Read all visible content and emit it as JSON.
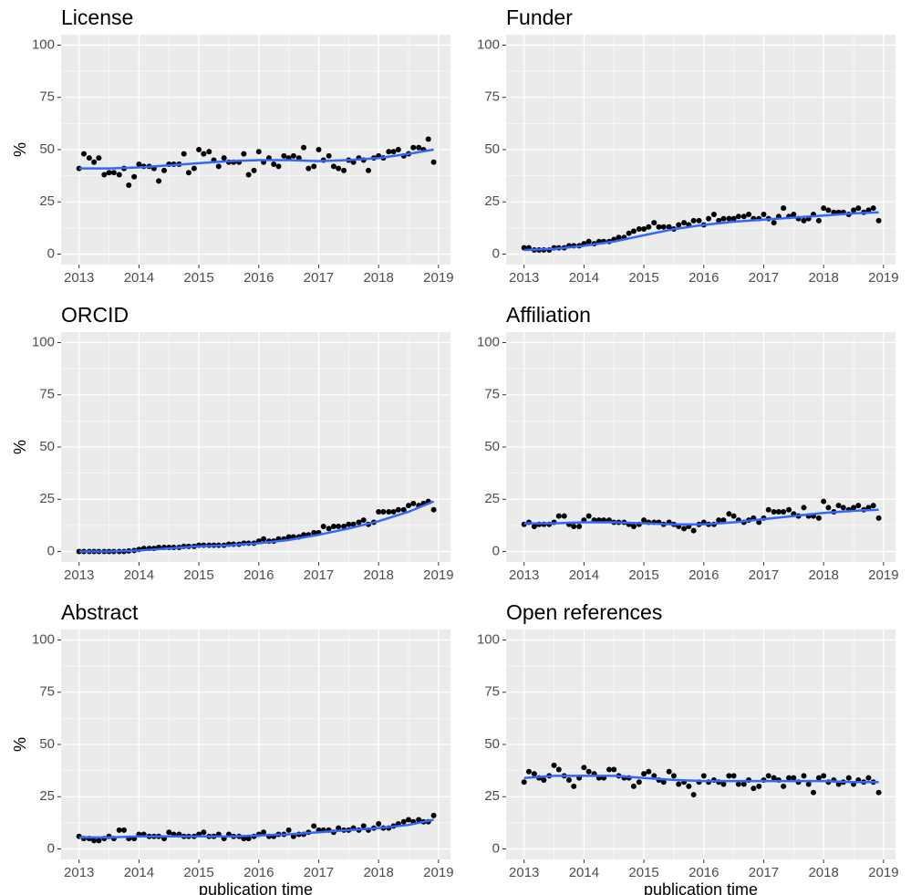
{
  "chart_data": [
    {
      "type": "scatter",
      "title": "License",
      "ylabel": "%",
      "x": [
        2013,
        2013.08,
        2013.17,
        2013.25,
        2013.33,
        2013.42,
        2013.5,
        2013.58,
        2013.67,
        2013.75,
        2013.83,
        2013.92,
        2014,
        2014.08,
        2014.17,
        2014.25,
        2014.33,
        2014.42,
        2014.5,
        2014.58,
        2014.67,
        2014.75,
        2014.83,
        2014.92,
        2015,
        2015.08,
        2015.17,
        2015.25,
        2015.33,
        2015.42,
        2015.5,
        2015.58,
        2015.67,
        2015.75,
        2015.83,
        2015.92,
        2016,
        2016.08,
        2016.17,
        2016.25,
        2016.33,
        2016.42,
        2016.5,
        2016.58,
        2016.67,
        2016.75,
        2016.83,
        2016.92,
        2017,
        2017.08,
        2017.17,
        2017.25,
        2017.33,
        2017.42,
        2017.5,
        2017.58,
        2017.67,
        2017.75,
        2017.83,
        2017.92,
        2018,
        2018.08,
        2018.17,
        2018.25,
        2018.33,
        2018.42,
        2018.5,
        2018.58,
        2018.67,
        2018.75,
        2018.83,
        2018.92
      ],
      "values": [
        41,
        48,
        46,
        44,
        46,
        38,
        39,
        39,
        38,
        41,
        33,
        37,
        43,
        42,
        42,
        41,
        35,
        40,
        43,
        43,
        43,
        48,
        39,
        41,
        50,
        48,
        49,
        45,
        42,
        46,
        44,
        44,
        44,
        48,
        38,
        40,
        49,
        44,
        46,
        43,
        42,
        47,
        46,
        47,
        46,
        51,
        41,
        42,
        50,
        45,
        47,
        42,
        41,
        40,
        45,
        44,
        46,
        45,
        40,
        46,
        47,
        46,
        49,
        49,
        50,
        47,
        48,
        51,
        51,
        50,
        55,
        44
      ],
      "trend_x": [
        2013,
        2013.5,
        2014,
        2014.5,
        2015,
        2015.5,
        2016,
        2016.5,
        2017,
        2017.5,
        2018,
        2018.5,
        2018.92
      ],
      "trend": [
        41,
        41,
        41.5,
        42.5,
        43.5,
        44.5,
        45,
        45,
        44.5,
        45,
        46,
        48,
        50
      ],
      "point_color": "#000000",
      "trend_color": "#3366ff",
      "xlim": [
        2012.7,
        2019.2
      ],
      "xticks": [
        2013,
        2014,
        2015,
        2016,
        2017,
        2018,
        2019
      ],
      "ylim": [
        -5,
        105
      ],
      "yticks": [
        0,
        25,
        50,
        75,
        100
      ],
      "grid": true
    },
    {
      "type": "scatter",
      "title": "Funder",
      "x": [
        2013,
        2013.08,
        2013.17,
        2013.25,
        2013.33,
        2013.42,
        2013.5,
        2013.58,
        2013.67,
        2013.75,
        2013.83,
        2013.92,
        2014,
        2014.08,
        2014.17,
        2014.25,
        2014.33,
        2014.42,
        2014.5,
        2014.58,
        2014.67,
        2014.75,
        2014.83,
        2014.92,
        2015,
        2015.08,
        2015.17,
        2015.25,
        2015.33,
        2015.42,
        2015.5,
        2015.58,
        2015.67,
        2015.75,
        2015.83,
        2015.92,
        2016,
        2016.08,
        2016.17,
        2016.25,
        2016.33,
        2016.42,
        2016.5,
        2016.58,
        2016.67,
        2016.75,
        2016.83,
        2016.92,
        2017,
        2017.08,
        2017.17,
        2017.25,
        2017.33,
        2017.42,
        2017.5,
        2017.58,
        2017.67,
        2017.75,
        2017.83,
        2017.92,
        2018,
        2018.08,
        2018.17,
        2018.25,
        2018.33,
        2018.42,
        2018.5,
        2018.58,
        2018.67,
        2018.75,
        2018.83,
        2018.92
      ],
      "values": [
        3,
        3,
        2,
        2,
        2,
        2,
        3,
        3,
        3,
        4,
        4,
        4,
        5,
        6,
        5,
        6,
        6,
        6,
        7,
        8,
        8,
        10,
        11,
        12,
        12,
        13,
        15,
        13,
        13,
        13,
        12,
        14,
        15,
        14,
        16,
        16,
        14,
        17,
        19,
        16,
        17,
        17,
        17,
        18,
        18,
        19,
        17,
        17,
        19,
        17,
        15,
        18,
        22,
        18,
        19,
        17,
        16,
        17,
        19,
        16,
        22,
        21,
        20,
        20,
        20,
        19,
        21,
        22,
        20,
        21,
        22,
        16
      ],
      "trend_x": [
        2013,
        2013.5,
        2014,
        2014.5,
        2015,
        2015.5,
        2016,
        2016.5,
        2017,
        2017.5,
        2018,
        2018.5,
        2018.92
      ],
      "trend": [
        2,
        2.5,
        4,
        6,
        9,
        12,
        14,
        15.5,
        16.5,
        17.5,
        18.5,
        19.5,
        20
      ],
      "point_color": "#000000",
      "trend_color": "#3366ff",
      "xlim": [
        2012.7,
        2019.2
      ],
      "xticks": [
        2013,
        2014,
        2015,
        2016,
        2017,
        2018,
        2019
      ],
      "ylim": [
        -5,
        105
      ],
      "yticks": [
        0,
        25,
        50,
        75,
        100
      ],
      "grid": true
    },
    {
      "type": "scatter",
      "title": "ORCID",
      "ylabel": "%",
      "x": [
        2013,
        2013.08,
        2013.17,
        2013.25,
        2013.33,
        2013.42,
        2013.5,
        2013.58,
        2013.67,
        2013.75,
        2013.83,
        2013.92,
        2014,
        2014.08,
        2014.17,
        2014.25,
        2014.33,
        2014.42,
        2014.5,
        2014.58,
        2014.67,
        2014.75,
        2014.83,
        2014.92,
        2015,
        2015.08,
        2015.17,
        2015.25,
        2015.33,
        2015.42,
        2015.5,
        2015.58,
        2015.67,
        2015.75,
        2015.83,
        2015.92,
        2016,
        2016.08,
        2016.17,
        2016.25,
        2016.33,
        2016.42,
        2016.5,
        2016.58,
        2016.67,
        2016.75,
        2016.83,
        2016.92,
        2017,
        2017.08,
        2017.17,
        2017.25,
        2017.33,
        2017.42,
        2017.5,
        2017.58,
        2017.67,
        2017.75,
        2017.83,
        2017.92,
        2018,
        2018.08,
        2018.17,
        2018.25,
        2018.33,
        2018.42,
        2018.5,
        2018.58,
        2018.67,
        2018.75,
        2018.83,
        2018.92
      ],
      "values": [
        0,
        0,
        0,
        0,
        0,
        0,
        0,
        0,
        0,
        0,
        0.3,
        0.5,
        1,
        1.5,
        1.5,
        1.5,
        2,
        2,
        2,
        2,
        2,
        2.5,
        2.5,
        2.5,
        3,
        3,
        3,
        3,
        3,
        3,
        3.5,
        3.5,
        3.5,
        4,
        4,
        4,
        5,
        6,
        5,
        5,
        6,
        6,
        7,
        7,
        7,
        8,
        8,
        9,
        9,
        12,
        11,
        12,
        12,
        12,
        13,
        13,
        14,
        15,
        13,
        14,
        19,
        19,
        19,
        19,
        20,
        20,
        22,
        23,
        22,
        23,
        24,
        20
      ],
      "trend_x": [
        2013,
        2013.5,
        2014,
        2014.5,
        2015,
        2015.5,
        2016,
        2016.5,
        2017,
        2017.5,
        2018,
        2018.5,
        2018.92
      ],
      "trend": [
        0,
        0,
        0.5,
        1.5,
        2.5,
        3,
        4,
        5.5,
        8,
        11,
        14.5,
        19,
        24
      ],
      "point_color": "#000000",
      "trend_color": "#3366ff",
      "xlim": [
        2012.7,
        2019.2
      ],
      "xticks": [
        2013,
        2014,
        2015,
        2016,
        2017,
        2018,
        2019
      ],
      "ylim": [
        -5,
        105
      ],
      "yticks": [
        0,
        25,
        50,
        75,
        100
      ],
      "grid": true
    },
    {
      "type": "scatter",
      "title": "Affiliation",
      "x": [
        2013,
        2013.08,
        2013.17,
        2013.25,
        2013.33,
        2013.42,
        2013.5,
        2013.58,
        2013.67,
        2013.75,
        2013.83,
        2013.92,
        2014,
        2014.08,
        2014.17,
        2014.25,
        2014.33,
        2014.42,
        2014.5,
        2014.58,
        2014.67,
        2014.75,
        2014.83,
        2014.92,
        2015,
        2015.08,
        2015.17,
        2015.25,
        2015.33,
        2015.42,
        2015.5,
        2015.58,
        2015.67,
        2015.75,
        2015.83,
        2015.92,
        2016,
        2016.08,
        2016.17,
        2016.25,
        2016.33,
        2016.42,
        2016.5,
        2016.58,
        2016.67,
        2016.75,
        2016.83,
        2016.92,
        2017,
        2017.08,
        2017.17,
        2017.25,
        2017.33,
        2017.42,
        2017.5,
        2017.58,
        2017.67,
        2017.75,
        2017.83,
        2017.92,
        2018,
        2018.08,
        2018.17,
        2018.25,
        2018.33,
        2018.42,
        2018.5,
        2018.58,
        2018.67,
        2018.75,
        2018.83,
        2018.92
      ],
      "values": [
        13,
        14,
        12,
        13,
        13,
        13,
        14,
        17,
        17,
        13,
        12,
        12,
        15,
        17,
        15,
        15,
        15,
        15,
        14,
        14,
        14,
        13,
        12,
        13,
        15,
        14,
        14,
        14,
        13,
        14,
        13,
        12,
        11,
        12,
        10,
        13,
        14,
        13,
        13,
        15,
        15,
        18,
        17,
        15,
        14,
        15,
        16,
        14,
        16,
        20,
        19,
        19,
        19,
        20,
        18,
        17,
        21,
        17,
        17,
        16,
        24,
        21,
        19,
        22,
        21,
        20,
        21,
        22,
        20,
        21,
        22,
        16
      ],
      "trend_x": [
        2013,
        2013.5,
        2014,
        2014.5,
        2015,
        2015.5,
        2016,
        2016.5,
        2017,
        2017.5,
        2018,
        2018.5,
        2018.92
      ],
      "trend": [
        13.5,
        13.5,
        14,
        14,
        13.5,
        13,
        13,
        14,
        15.5,
        17,
        18.5,
        19.5,
        20
      ],
      "point_color": "#000000",
      "trend_color": "#3366ff",
      "xlim": [
        2012.7,
        2019.2
      ],
      "xticks": [
        2013,
        2014,
        2015,
        2016,
        2017,
        2018,
        2019
      ],
      "ylim": [
        -5,
        105
      ],
      "yticks": [
        0,
        25,
        50,
        75,
        100
      ],
      "grid": true
    },
    {
      "type": "scatter",
      "title": "Abstract",
      "ylabel": "%",
      "xlabel": "publication time",
      "x": [
        2013,
        2013.08,
        2013.17,
        2013.25,
        2013.33,
        2013.42,
        2013.5,
        2013.58,
        2013.67,
        2013.75,
        2013.83,
        2013.92,
        2014,
        2014.08,
        2014.17,
        2014.25,
        2014.33,
        2014.42,
        2014.5,
        2014.58,
        2014.67,
        2014.75,
        2014.83,
        2014.92,
        2015,
        2015.08,
        2015.17,
        2015.25,
        2015.33,
        2015.42,
        2015.5,
        2015.58,
        2015.67,
        2015.75,
        2015.83,
        2015.92,
        2016,
        2016.08,
        2016.17,
        2016.25,
        2016.33,
        2016.42,
        2016.5,
        2016.58,
        2016.67,
        2016.75,
        2016.83,
        2016.92,
        2017,
        2017.08,
        2017.17,
        2017.25,
        2017.33,
        2017.42,
        2017.5,
        2017.58,
        2017.67,
        2017.75,
        2017.83,
        2017.92,
        2018,
        2018.08,
        2018.17,
        2018.25,
        2018.33,
        2018.42,
        2018.5,
        2018.58,
        2018.67,
        2018.75,
        2018.83,
        2018.92
      ],
      "values": [
        6,
        5,
        5,
        4,
        4,
        5,
        6,
        5,
        9,
        9,
        5,
        5,
        7,
        7,
        6,
        6,
        6,
        5,
        8,
        7,
        7,
        6,
        6,
        6,
        7,
        8,
        6,
        6,
        7,
        5,
        7,
        6,
        6,
        5,
        5,
        6,
        7,
        8,
        6,
        6,
        7,
        7,
        9,
        6,
        7,
        7,
        8,
        11,
        9,
        9,
        9,
        8,
        10,
        9,
        9,
        10,
        9,
        11,
        9,
        10,
        12,
        10,
        10,
        11,
        12,
        13,
        14,
        13,
        14,
        13,
        13,
        16
      ],
      "trend_x": [
        2013,
        2013.5,
        2014,
        2014.5,
        2015,
        2015.5,
        2016,
        2016.5,
        2017,
        2017.5,
        2018,
        2018.5,
        2018.92
      ],
      "trend": [
        5.5,
        5.5,
        6,
        6,
        6,
        6,
        6.5,
        7,
        8,
        9,
        10,
        11.5,
        14
      ],
      "point_color": "#000000",
      "trend_color": "#3366ff",
      "xlim": [
        2012.7,
        2019.2
      ],
      "xticks": [
        2013,
        2014,
        2015,
        2016,
        2017,
        2018,
        2019
      ],
      "ylim": [
        -5,
        105
      ],
      "yticks": [
        0,
        25,
        50,
        75,
        100
      ],
      "grid": true
    },
    {
      "type": "scatter",
      "title": "Open references",
      "xlabel": "publication time",
      "x": [
        2013,
        2013.08,
        2013.17,
        2013.25,
        2013.33,
        2013.42,
        2013.5,
        2013.58,
        2013.67,
        2013.75,
        2013.83,
        2013.92,
        2014,
        2014.08,
        2014.17,
        2014.25,
        2014.33,
        2014.42,
        2014.5,
        2014.58,
        2014.67,
        2014.75,
        2014.83,
        2014.92,
        2015,
        2015.08,
        2015.17,
        2015.25,
        2015.33,
        2015.42,
        2015.5,
        2015.58,
        2015.67,
        2015.75,
        2015.83,
        2015.92,
        2016,
        2016.08,
        2016.17,
        2016.25,
        2016.33,
        2016.42,
        2016.5,
        2016.58,
        2016.67,
        2016.75,
        2016.83,
        2016.92,
        2017,
        2017.08,
        2017.17,
        2017.25,
        2017.33,
        2017.42,
        2017.5,
        2017.58,
        2017.67,
        2017.75,
        2017.83,
        2017.92,
        2018,
        2018.08,
        2018.17,
        2018.25,
        2018.33,
        2018.42,
        2018.5,
        2018.58,
        2018.67,
        2018.75,
        2018.83,
        2018.92
      ],
      "values": [
        32,
        37,
        36,
        34,
        33,
        35,
        40,
        38,
        35,
        33,
        30,
        34,
        39,
        37,
        36,
        34,
        34,
        38,
        38,
        35,
        34,
        34,
        30,
        32,
        36,
        37,
        35,
        33,
        32,
        37,
        35,
        31,
        32,
        30,
        26,
        32,
        35,
        32,
        33,
        32,
        31,
        35,
        35,
        31,
        31,
        33,
        29,
        30,
        33,
        35,
        34,
        33,
        30,
        34,
        34,
        32,
        35,
        31,
        27,
        34,
        35,
        32,
        33,
        31,
        32,
        34,
        31,
        33,
        32,
        34,
        32,
        27
      ],
      "trend_x": [
        2013,
        2013.5,
        2014,
        2014.5,
        2015,
        2015.5,
        2016,
        2016.5,
        2017,
        2017.5,
        2018,
        2018.5,
        2018.92
      ],
      "trend": [
        34,
        35,
        35,
        35,
        34,
        33,
        32.5,
        32.5,
        32.5,
        32.5,
        32.5,
        32,
        32
      ],
      "point_color": "#000000",
      "trend_color": "#3366ff",
      "xlim": [
        2012.7,
        2019.2
      ],
      "xticks": [
        2013,
        2014,
        2015,
        2016,
        2017,
        2018,
        2019
      ],
      "ylim": [
        -5,
        105
      ],
      "yticks": [
        0,
        25,
        50,
        75,
        100
      ],
      "grid": true
    }
  ]
}
